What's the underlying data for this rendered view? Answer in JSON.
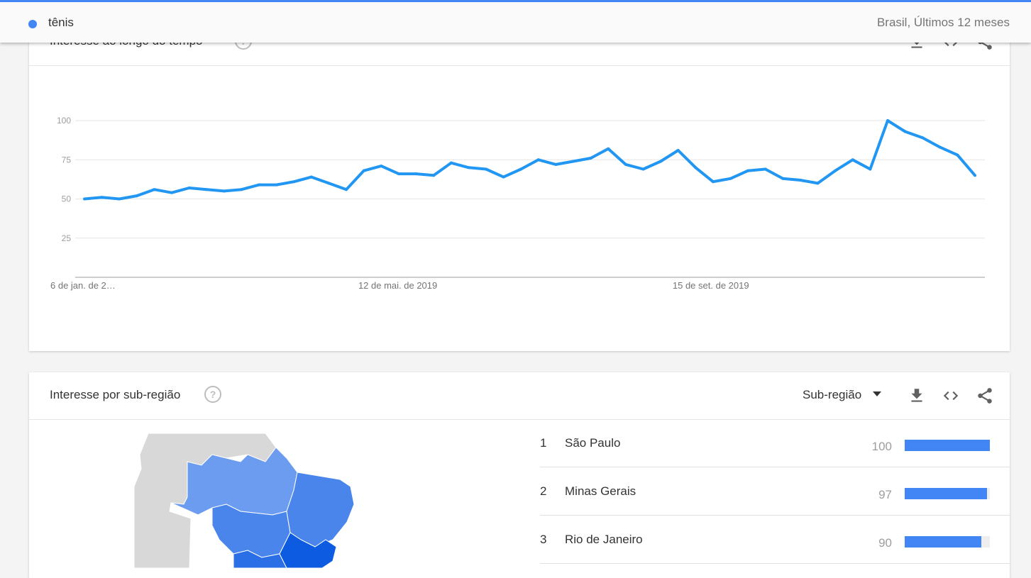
{
  "header": {
    "term": "tênis",
    "term_color": "#4285f4",
    "meta": "Brasil, Últimos 12 meses"
  },
  "over_time": {
    "title": "Interesse ao longo do tempo"
  },
  "chart_data": {
    "type": "line",
    "title": "",
    "xlabel": "",
    "ylabel": "",
    "ylim": [
      0,
      100
    ],
    "yticks": [
      25,
      50,
      75,
      100
    ],
    "grid": true,
    "line_color": "#2196f3",
    "x_tick_labels": [
      {
        "index": 0,
        "label": "6 de jan. de 2…"
      },
      {
        "index": 18,
        "label": "12 de mai. de 2019"
      },
      {
        "index": 36,
        "label": "15 de set. de 2019"
      }
    ],
    "series": [
      {
        "values": [
          50,
          51,
          50,
          52,
          56,
          54,
          57,
          56,
          55,
          56,
          59,
          59,
          61,
          64,
          60,
          56,
          68,
          71,
          66,
          66,
          65,
          73,
          70,
          69,
          64,
          69,
          75,
          72,
          74,
          76,
          82,
          72,
          69,
          74,
          81,
          70,
          61,
          63,
          68,
          69,
          63,
          62,
          60,
          68,
          75,
          69,
          100,
          93,
          89,
          83,
          78,
          65
        ]
      }
    ]
  },
  "by_region": {
    "title": "Interesse por sub-região",
    "dropdown_label": "Sub-região",
    "rows": [
      {
        "rank": "1",
        "name": "São Paulo",
        "value": "100",
        "pct": 100
      },
      {
        "rank": "2",
        "name": "Minas Gerais",
        "value": "97",
        "pct": 97
      },
      {
        "rank": "3",
        "name": "Rio de Janeiro",
        "value": "90",
        "pct": 90
      }
    ]
  },
  "icons": {
    "help": "help-circle-icon",
    "download": "download-icon",
    "embed": "embed-code-icon",
    "share": "share-icon",
    "dropdown": "caret-down-icon"
  },
  "map_colors": {
    "base": "#d8d8d8",
    "light": "#6b9cf0",
    "mid": "#4a85ec",
    "dark": "#2a6fe6",
    "top": "#0d5be1"
  }
}
